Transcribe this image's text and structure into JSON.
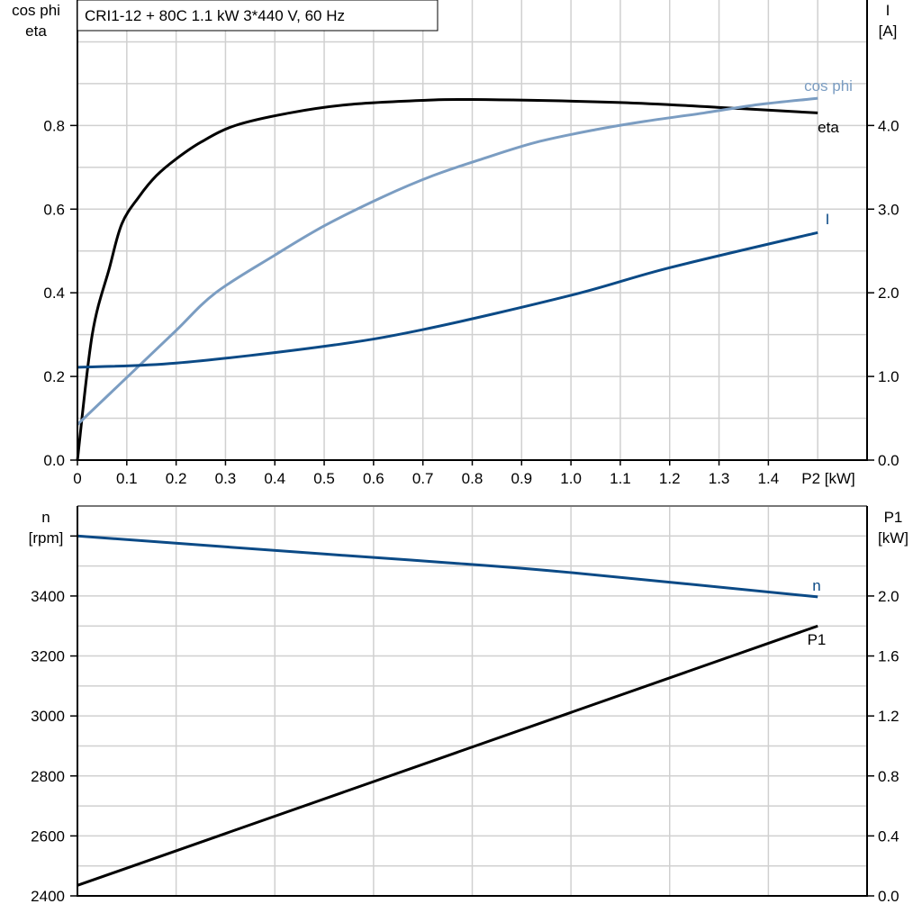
{
  "title": "CRI1-12 + 80C   1.1 kW   3*440 V, 60 Hz",
  "colors": {
    "eta": "#000000",
    "cos_phi": "#7b9dc2",
    "I": "#0b4a86",
    "n": "#0b4a86",
    "P1": "#000000",
    "grid": "#d0d0d0"
  },
  "chart_data": [
    {
      "type": "line",
      "title": "CRI1-12 + 80C   1.1 kW   3*440 V, 60 Hz",
      "xlabel": "P2 [kW]",
      "ylabel_left": [
        "cos phi",
        "eta"
      ],
      "ylabel_right": [
        "I",
        "[A]"
      ],
      "xlim": [
        0,
        1.6
      ],
      "ylim_left": [
        0,
        1.1
      ],
      "ylim_right": [
        0,
        5.5
      ],
      "x_ticks": [
        "0",
        "0.1",
        "0.2",
        "0.3",
        "0.4",
        "0.5",
        "0.6",
        "0.7",
        "0.8",
        "0.9",
        "1.0",
        "1.1",
        "1.2",
        "1.3",
        "1.4"
      ],
      "y_ticks_left": [
        "0.0",
        "0.2",
        "0.4",
        "0.6",
        "0.8"
      ],
      "y_ticks_right": [
        "0.0",
        "1.0",
        "2.0",
        "3.0",
        "4.0"
      ],
      "grid": true,
      "series": [
        {
          "name": "eta",
          "axis": "left",
          "x": [
            0,
            0.03,
            0.065,
            0.09,
            0.125,
            0.16,
            0.2,
            0.25,
            0.32,
            0.43,
            0.55,
            0.7,
            0.8,
            1.1,
            1.35,
            1.5
          ],
          "y": [
            0,
            0.3,
            0.46,
            0.565,
            0.63,
            0.68,
            0.72,
            0.76,
            0.8,
            0.83,
            0.85,
            0.86,
            0.862,
            0.855,
            0.84,
            0.83
          ]
        },
        {
          "name": "cos phi",
          "axis": "left",
          "x": [
            0,
            0.12,
            0.2,
            0.28,
            0.4,
            0.5,
            0.62,
            0.72,
            0.82,
            0.93,
            1.05,
            1.15,
            1.27,
            1.38,
            1.5
          ],
          "y": [
            0.085,
            0.22,
            0.31,
            0.4,
            0.49,
            0.56,
            0.63,
            0.68,
            0.72,
            0.76,
            0.79,
            0.81,
            0.83,
            0.85,
            0.865
          ]
        },
        {
          "name": "I",
          "axis": "right",
          "x": [
            0,
            0.2,
            0.5,
            0.7,
            1.0,
            1.2,
            1.5
          ],
          "y": [
            1.11,
            1.16,
            1.36,
            1.56,
            1.97,
            2.3,
            2.72
          ]
        }
      ]
    },
    {
      "type": "line",
      "ylabel_left": [
        "n",
        "[rpm]"
      ],
      "ylabel_right": [
        "P1",
        "[kW]"
      ],
      "xlim": [
        0,
        1.6
      ],
      "ylim_left": [
        2400,
        3700
      ],
      "ylim_right": [
        0,
        2.6
      ],
      "y_ticks_left": [
        "2400",
        "2600",
        "2800",
        "3000",
        "3200",
        "3400"
      ],
      "y_ticks_right": [
        "0.0",
        "0.4",
        "0.8",
        "1.2",
        "1.6",
        "2.0"
      ],
      "grid": true,
      "series": [
        {
          "name": "n",
          "axis": "left",
          "x": [
            0,
            0.5,
            0.75,
            1.0,
            1.5
          ],
          "y": [
            3600,
            3540,
            3511,
            3478,
            3397
          ]
        },
        {
          "name": "P1",
          "axis": "right",
          "x": [
            0,
            1.5
          ],
          "y": [
            0.07,
            1.8
          ]
        }
      ]
    }
  ]
}
